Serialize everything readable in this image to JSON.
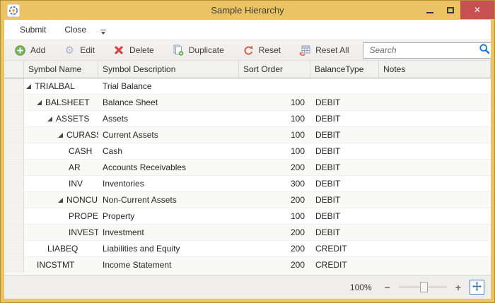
{
  "window": {
    "title": "Sample Hierarchy",
    "controls": {
      "close_glyph": "✕"
    }
  },
  "menubar": {
    "items": [
      "Submit",
      "Close"
    ]
  },
  "toolbar": {
    "buttons": [
      {
        "label": "Add",
        "icon": "add-icon"
      },
      {
        "label": "Edit",
        "icon": "gear-icon"
      },
      {
        "label": "Delete",
        "icon": "delete-icon"
      },
      {
        "label": "Duplicate",
        "icon": "duplicate-icon"
      },
      {
        "label": "Reset",
        "icon": "reset-icon"
      },
      {
        "label": "Reset All",
        "icon": "reset-all-icon"
      }
    ],
    "search_placeholder": "Search"
  },
  "grid": {
    "columns": [
      "Symbol Name",
      "Symbol Description",
      "Sort Order",
      "BalanceType",
      "Notes"
    ],
    "rows": [
      {
        "name": "TRIALBAL",
        "desc": "Trial Balance",
        "sort": "",
        "balance": "",
        "notes": "",
        "level": 0,
        "expandable": true
      },
      {
        "name": "BALSHEET",
        "desc": "Balance Sheet",
        "sort": "100",
        "balance": "DEBIT",
        "notes": "",
        "level": 1,
        "expandable": true
      },
      {
        "name": "ASSETS",
        "desc": "Assets",
        "sort": "100",
        "balance": "DEBIT",
        "notes": "",
        "level": 2,
        "expandable": true
      },
      {
        "name": "CURASSETS",
        "desc": "Current Assets",
        "sort": "100",
        "balance": "DEBIT",
        "notes": "",
        "level": 3,
        "expandable": true
      },
      {
        "name": "CASH",
        "desc": "Cash",
        "sort": "100",
        "balance": "DEBIT",
        "notes": "",
        "level": 4,
        "expandable": false
      },
      {
        "name": "AR",
        "desc": "Accounts Receivables",
        "sort": "200",
        "balance": "DEBIT",
        "notes": "",
        "level": 4,
        "expandable": false
      },
      {
        "name": "INV",
        "desc": "Inventories",
        "sort": "300",
        "balance": "DEBIT",
        "notes": "",
        "level": 4,
        "expandable": false
      },
      {
        "name": "NONCURAS",
        "desc": "Non-Current Assets",
        "sort": "200",
        "balance": "DEBIT",
        "notes": "",
        "level": 3,
        "expandable": true
      },
      {
        "name": "PROPERT",
        "desc": "Property",
        "sort": "100",
        "balance": "DEBIT",
        "notes": "",
        "level": 4,
        "expandable": false
      },
      {
        "name": "INVESTM",
        "desc": "Investment",
        "sort": "200",
        "balance": "DEBIT",
        "notes": "",
        "level": 4,
        "expandable": false
      },
      {
        "name": "LIABEQ",
        "desc": "Liabilities and Equity",
        "sort": "200",
        "balance": "CREDIT",
        "notes": "",
        "level": 2,
        "expandable": false
      },
      {
        "name": "INCSTMT",
        "desc": "Income Statement",
        "sort": "200",
        "balance": "CREDIT",
        "notes": "",
        "level": 1,
        "expandable": false
      }
    ]
  },
  "statusbar": {
    "zoom_value": "100%",
    "minus_label": "−",
    "plus_label": "+"
  },
  "colors": {
    "titlebar_gold": "#ecc363",
    "close_red": "#c75050",
    "accent_blue": "#1177d7",
    "add_green": "#7ab75c",
    "delete_red": "#d9433f",
    "reset_orange": "#cf6f5a"
  }
}
